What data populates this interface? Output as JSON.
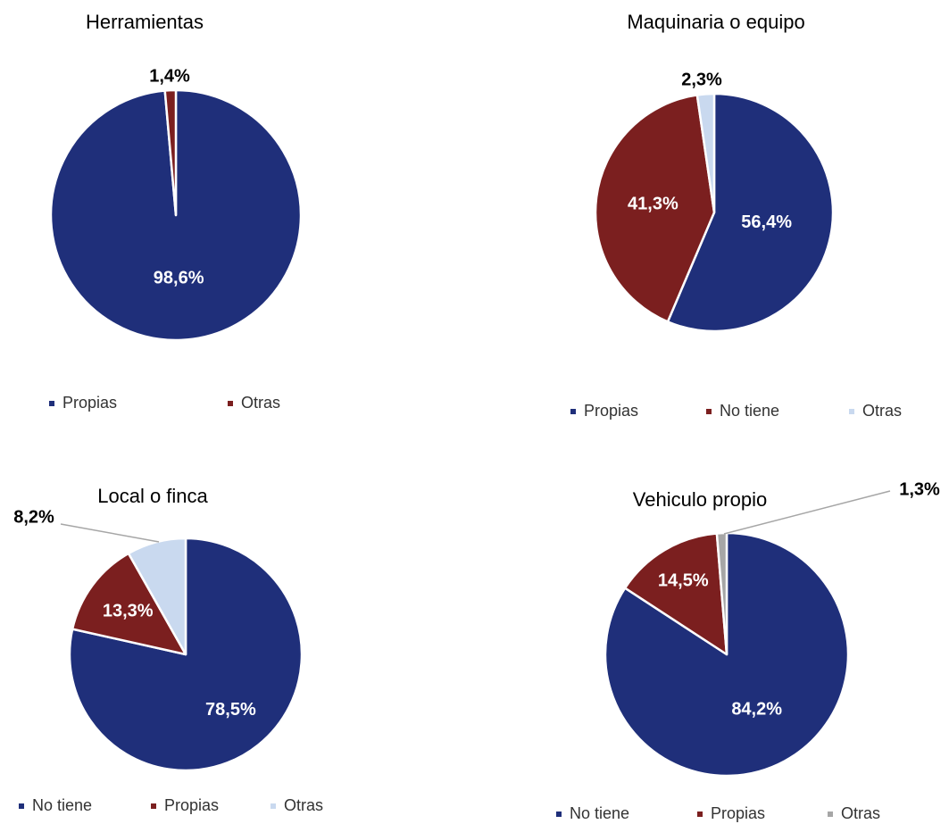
{
  "colors": {
    "navy": "#1f2f7a",
    "maroon": "#7b1f1f",
    "lightblue": "#c9d9ef",
    "gray": "#a6a6a6"
  },
  "chart_data": [
    {
      "type": "pie",
      "title": "Herramientas",
      "slices": [
        {
          "name": "Propias",
          "value": 98.6,
          "label": "98,6%",
          "color": "#1f2f7a",
          "label_pos": "inside"
        },
        {
          "name": "Otras",
          "value": 1.4,
          "label": "1,4%",
          "color": "#7b1f1f",
          "label_pos": "outside"
        }
      ],
      "legend": [
        "Propias",
        "Otras"
      ],
      "legend_position": "bottom"
    },
    {
      "type": "pie",
      "title": "Maquinaria o equipo",
      "slices": [
        {
          "name": "Propias",
          "value": 56.4,
          "label": "56,4%",
          "color": "#1f2f7a",
          "label_pos": "inside"
        },
        {
          "name": "No tiene",
          "value": 41.3,
          "label": "41,3%",
          "color": "#7b1f1f",
          "label_pos": "inside"
        },
        {
          "name": "Otras",
          "value": 2.3,
          "label": "2,3%",
          "color": "#c9d9ef",
          "label_pos": "outside"
        }
      ],
      "legend": [
        "Propias",
        "No tiene",
        "Otras"
      ],
      "legend_position": "bottom"
    },
    {
      "type": "pie",
      "title": "Local o finca",
      "slices": [
        {
          "name": "No tiene",
          "value": 78.5,
          "label": "78,5%",
          "color": "#1f2f7a",
          "label_pos": "inside"
        },
        {
          "name": "Propias",
          "value": 13.3,
          "label": "13,3%",
          "color": "#7b1f1f",
          "label_pos": "inside"
        },
        {
          "name": "Otras",
          "value": 8.2,
          "label": "8,2%",
          "color": "#c9d9ef",
          "label_pos": "outside"
        }
      ],
      "legend": [
        "No tiene",
        "Propias",
        "Otras"
      ],
      "legend_position": "bottom"
    },
    {
      "type": "pie",
      "title": "Vehiculo propio",
      "slices": [
        {
          "name": "No tiene",
          "value": 84.2,
          "label": "84,2%",
          "color": "#1f2f7a",
          "label_pos": "inside"
        },
        {
          "name": "Propias",
          "value": 14.5,
          "label": "14,5%",
          "color": "#7b1f1f",
          "label_pos": "inside"
        },
        {
          "name": "Otras",
          "value": 1.3,
          "label": "1,3%",
          "color": "#a6a6a6",
          "label_pos": "outside"
        }
      ],
      "legend": [
        "No tiene",
        "Propias",
        "Otras"
      ],
      "legend_position": "bottom"
    }
  ]
}
